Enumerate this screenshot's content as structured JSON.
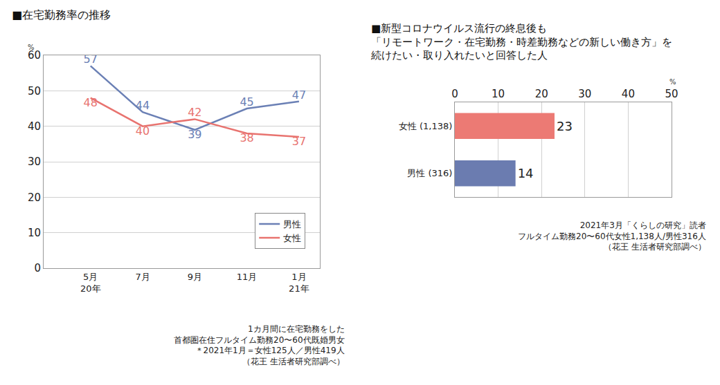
{
  "chart_data": [
    {
      "type": "line",
      "title": "■在宅勤務率の推移",
      "ylabel": "%",
      "categories": [
        "5月\n20年",
        "7月",
        "9月",
        "11月",
        "1月\n21年"
      ],
      "series": [
        {
          "name": "男性",
          "color": "#6b80b5",
          "values": [
            57,
            44,
            39,
            45,
            47
          ]
        },
        {
          "name": "女性",
          "color": "#e8736f",
          "values": [
            48,
            40,
            42,
            38,
            37
          ]
        }
      ],
      "ylim": [
        0,
        60
      ],
      "yticks": [
        0,
        10,
        20,
        30,
        40,
        50,
        60
      ],
      "grid": true,
      "legend": "lower right",
      "data_labels": true,
      "annotations": [
        "1カ月間に在宅勤務をした",
        "首都圏在住フルタイム勤務20〜60代既婚男女",
        "＊2021年1月＝女性125人／男性419人",
        "（花王 生活者研究部調べ）"
      ]
    },
    {
      "type": "bar",
      "orientation": "horizontal",
      "title": "■新型コロナウイルス流行の終息後も\n「リモートワーク・在宅勤務・時差勤務などの新しい働き方」を\n続けたい・取り入れたいと回答した人",
      "xlabel": "%",
      "categories": [
        "女性 (1,138)",
        "男性 (316)"
      ],
      "values": [
        23,
        14
      ],
      "colors": [
        "#ec7a74",
        "#6b7cb0"
      ],
      "xlim": [
        0,
        50
      ],
      "xticks": [
        0,
        10,
        20,
        30,
        40,
        50
      ],
      "grid": true,
      "data_labels": true,
      "annotations": [
        "2021年3月「くらしの研究」読者",
        "フルタイム勤務20〜60代女性1,138人/男性316人",
        "（花王 生活者研究部調べ）"
      ]
    }
  ]
}
